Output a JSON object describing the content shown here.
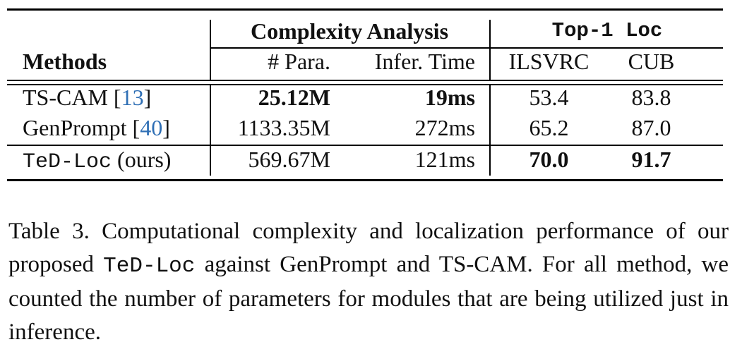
{
  "table": {
    "header": {
      "methods": "Methods",
      "group_complexity": "Complexity Analysis",
      "group_loc": "Top-1 Loc",
      "col_para": "# Para.",
      "col_time": "Infer. Time",
      "col_ilsvrc": "ILSVRC",
      "col_cub": "CUB"
    },
    "rows": [
      {
        "name": "TS-CAM",
        "ref_open": " [",
        "ref": "13",
        "ref_close": "]",
        "para": "25.12M",
        "time": "19ms",
        "ilsvrc": "53.4",
        "cub": "83.8"
      },
      {
        "name": "GenPrompt",
        "ref_open": " [",
        "ref": "40",
        "ref_close": "]",
        "para": "1133.35M",
        "time": "272ms",
        "ilsvrc": "65.2",
        "cub": "87.0"
      },
      {
        "name": "TeD-Loc",
        "suffix": " (ours)",
        "para": "569.67M",
        "time": "121ms",
        "ilsvrc": "70.0",
        "cub": "91.7"
      }
    ]
  },
  "caption": {
    "p1": "Table 3. Computational complexity and localization performance of our proposed ",
    "code": "TeD-Loc",
    "p2": " against GenPrompt and TS-CAM. For all method, we counted the number of parameters for modules that are being utilized just in inference."
  },
  "colors": {
    "text": "#111111",
    "citation_link": "#2f6fb5"
  }
}
